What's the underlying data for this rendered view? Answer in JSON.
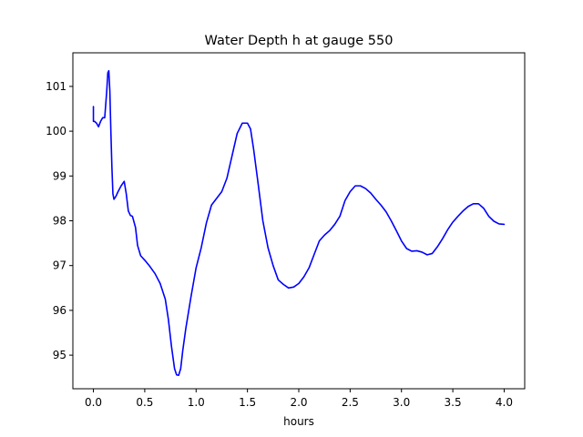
{
  "chart_data": {
    "type": "line",
    "title": "Water Depth h at gauge 550",
    "xlabel": "hours",
    "ylabel": "",
    "xlim": [
      -0.2,
      4.2
    ],
    "ylim": [
      94.25,
      101.75
    ],
    "x_ticks": [
      0.0,
      0.5,
      1.0,
      1.5,
      2.0,
      2.5,
      3.0,
      3.5,
      4.0
    ],
    "x_tick_labels": [
      "0.0",
      "0.5",
      "1.0",
      "1.5",
      "2.0",
      "2.5",
      "3.0",
      "3.5",
      "4.0"
    ],
    "y_ticks": [
      95,
      96,
      97,
      98,
      99,
      100,
      101
    ],
    "y_tick_labels": [
      "95",
      "96",
      "97",
      "98",
      "99",
      "100",
      "101"
    ],
    "grid": false,
    "series": [
      {
        "color": "#0000ff",
        "x": [
          0.0,
          0.0,
          0.01,
          0.03,
          0.05,
          0.07,
          0.09,
          0.11,
          0.13,
          0.14,
          0.15,
          0.16,
          0.17,
          0.18,
          0.19,
          0.2,
          0.22,
          0.24,
          0.27,
          0.3,
          0.32,
          0.34,
          0.36,
          0.38,
          0.41,
          0.43,
          0.46,
          0.5,
          0.55,
          0.6,
          0.65,
          0.7,
          0.73,
          0.76,
          0.79,
          0.81,
          0.83,
          0.85,
          0.87,
          0.9,
          0.95,
          1.0,
          1.05,
          1.1,
          1.15,
          1.2,
          1.25,
          1.3,
          1.35,
          1.4,
          1.45,
          1.5,
          1.53,
          1.56,
          1.6,
          1.65,
          1.7,
          1.75,
          1.8,
          1.85,
          1.9,
          1.95,
          2.0,
          2.05,
          2.1,
          2.15,
          2.2,
          2.25,
          2.3,
          2.35,
          2.4,
          2.45,
          2.5,
          2.55,
          2.6,
          2.65,
          2.7,
          2.75,
          2.8,
          2.85,
          2.9,
          2.95,
          3.0,
          3.05,
          3.1,
          3.15,
          3.2,
          3.25,
          3.3,
          3.35,
          3.4,
          3.45,
          3.5,
          3.55,
          3.6,
          3.65,
          3.7,
          3.75,
          3.8,
          3.85,
          3.9,
          3.95,
          4.0
        ],
        "values": [
          100.55,
          100.22,
          100.22,
          100.18,
          100.1,
          100.22,
          100.3,
          100.3,
          100.9,
          101.3,
          101.35,
          100.9,
          100.0,
          99.2,
          98.6,
          98.48,
          98.55,
          98.65,
          98.78,
          98.88,
          98.6,
          98.22,
          98.12,
          98.1,
          97.85,
          97.45,
          97.22,
          97.12,
          96.98,
          96.82,
          96.6,
          96.25,
          95.8,
          95.2,
          94.7,
          94.56,
          94.55,
          94.7,
          95.1,
          95.6,
          96.3,
          96.95,
          97.4,
          97.95,
          98.35,
          98.5,
          98.65,
          98.95,
          99.45,
          99.95,
          100.18,
          100.18,
          100.05,
          99.6,
          98.9,
          98.0,
          97.4,
          97.0,
          96.68,
          96.58,
          96.5,
          96.52,
          96.6,
          96.75,
          96.95,
          97.25,
          97.55,
          97.68,
          97.78,
          97.92,
          98.1,
          98.45,
          98.65,
          98.78,
          98.78,
          98.72,
          98.62,
          98.48,
          98.35,
          98.2,
          98.0,
          97.78,
          97.55,
          97.38,
          97.32,
          97.33,
          97.3,
          97.24,
          97.27,
          97.42,
          97.6,
          97.8,
          97.97,
          98.1,
          98.22,
          98.32,
          98.38,
          98.38,
          98.28,
          98.1,
          97.99,
          97.93,
          97.92
        ]
      }
    ]
  }
}
